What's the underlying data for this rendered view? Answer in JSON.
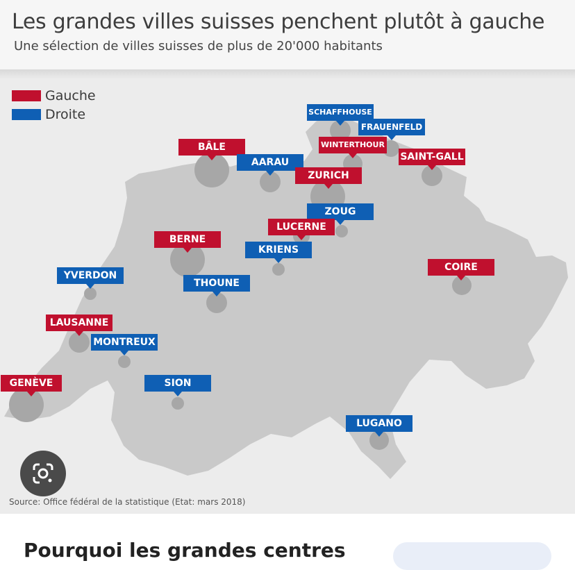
{
  "title": "Les grandes villes suisses penchent plutôt à gauche",
  "subtitle": "Une sélection de villes suisses de plus de 20'000 habitants",
  "colors": {
    "gauche": "#c0102e",
    "droite": "#0f5fb4",
    "map": "#c9c9c9",
    "dot": "#a7a7a7"
  },
  "legend": [
    {
      "label": "Gauche",
      "color": "#c0102e"
    },
    {
      "label": "Droite",
      "color": "#0f5fb4"
    }
  ],
  "cities": [
    {
      "name": "SCHAFFHOUSE",
      "side": "droite"
    },
    {
      "name": "FRAUENFELD",
      "side": "droite"
    },
    {
      "name": "WINTERTHOUR",
      "side": "gauche"
    },
    {
      "name": "SAINT-GALL",
      "side": "gauche"
    },
    {
      "name": "BÂLE",
      "side": "gauche"
    },
    {
      "name": "AARAU",
      "side": "droite"
    },
    {
      "name": "ZURICH",
      "side": "gauche"
    },
    {
      "name": "ZOUG",
      "side": "droite"
    },
    {
      "name": "LUCERNE",
      "side": "gauche"
    },
    {
      "name": "BERNE",
      "side": "gauche"
    },
    {
      "name": "KRIENS",
      "side": "droite"
    },
    {
      "name": "COIRE",
      "side": "gauche"
    },
    {
      "name": "YVERDON",
      "side": "droite"
    },
    {
      "name": "THOUNE",
      "side": "droite"
    },
    {
      "name": "LAUSANNE",
      "side": "gauche"
    },
    {
      "name": "MONTREUX",
      "side": "droite"
    },
    {
      "name": "GENÈVE",
      "side": "gauche"
    },
    {
      "name": "SION",
      "side": "droite"
    },
    {
      "name": "LUGANO",
      "side": "droite"
    }
  ],
  "source": "Source: Office fédéral de la statistique (Etat: mars 2018)",
  "bottom_text": "Pourquoi les grandes centres",
  "lens_icon": "google-lens-icon"
}
